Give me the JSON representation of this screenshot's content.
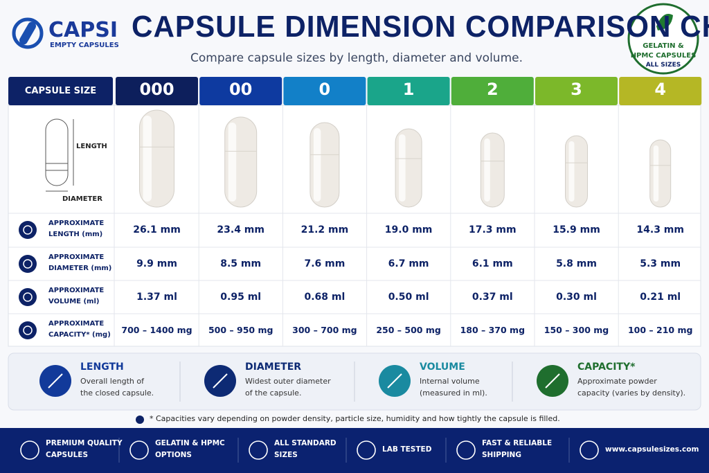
{
  "header": {
    "brand": "CAPSI",
    "brand_sub": "EMPTY CAPSULES",
    "title": "CAPSULE DIMENSION COMPARISON CHART",
    "subtitle": "Compare capsule sizes by length, diameter and volume.",
    "badge": [
      "GELATIN &",
      "HPMC CAPSULES",
      "ALL SIZES"
    ]
  },
  "table": {
    "corner": "CAPSULE SIZE",
    "sizes": [
      "000",
      "00",
      "0",
      "1",
      "2",
      "3",
      "4"
    ],
    "diagram": {
      "length": "LENGTH",
      "diameter": "DIAMETER"
    },
    "rows": [
      {
        "label": [
          "APPROXIMATE",
          "LENGTH (mm)"
        ],
        "values": [
          "26.1 mm",
          "23.4 mm",
          "21.2 mm",
          "19.0 mm",
          "17.3 mm",
          "15.9 mm",
          "14.3 mm"
        ]
      },
      {
        "label": [
          "APPROXIMATE",
          "DIAMETER (mm)"
        ],
        "values": [
          "9.9 mm",
          "8.5 mm",
          "7.6 mm",
          "6.7 mm",
          "6.1 mm",
          "5.8 mm",
          "5.3 mm"
        ]
      },
      {
        "label": [
          "APPROXIMATE",
          "VOLUME (ml)"
        ],
        "values": [
          "1.37 ml",
          "0.95 ml",
          "0.68 ml",
          "0.50 ml",
          "0.37 ml",
          "0.30 ml",
          "0.21 ml"
        ]
      },
      {
        "label": [
          "APPROXIMATE",
          "CAPACITY* (mg)"
        ],
        "values": [
          "700 – 1400 mg",
          "500 – 950 mg",
          "300 – 700 mg",
          "250 – 500 mg",
          "180 – 370 mg",
          "150 – 300 mg",
          "100 – 210 mg"
        ]
      }
    ]
  },
  "legend": [
    {
      "title": "LENGTH",
      "text": [
        "Overall length of",
        "the closed capsule."
      ]
    },
    {
      "title": "DIAMETER",
      "text": [
        "Widest outer diameter",
        "of the capsule."
      ]
    },
    {
      "title": "VOLUME",
      "text": [
        "Internal volume",
        "(measured in ml)."
      ]
    },
    {
      "title": "CAPACITY*",
      "text": [
        "Approximate powder",
        "capacity (varies by density)."
      ]
    }
  ],
  "footnote": "* Capacities vary depending on powder density, particle size, humidity and how tightly the capsule is filled.",
  "footer": [
    {
      "text": [
        "PREMIUM QUALITY",
        "CAPSULES"
      ]
    },
    {
      "text": [
        "GELATIN & HPMC",
        "OPTIONS"
      ]
    },
    {
      "text": [
        "ALL STANDARD",
        "SIZES"
      ]
    },
    {
      "text": [
        "LAB TESTED"
      ]
    },
    {
      "text": [
        "FAST & RELIABLE",
        "SHIPPING"
      ]
    },
    {
      "text": [
        "www.capsulesizes.com"
      ]
    }
  ]
}
